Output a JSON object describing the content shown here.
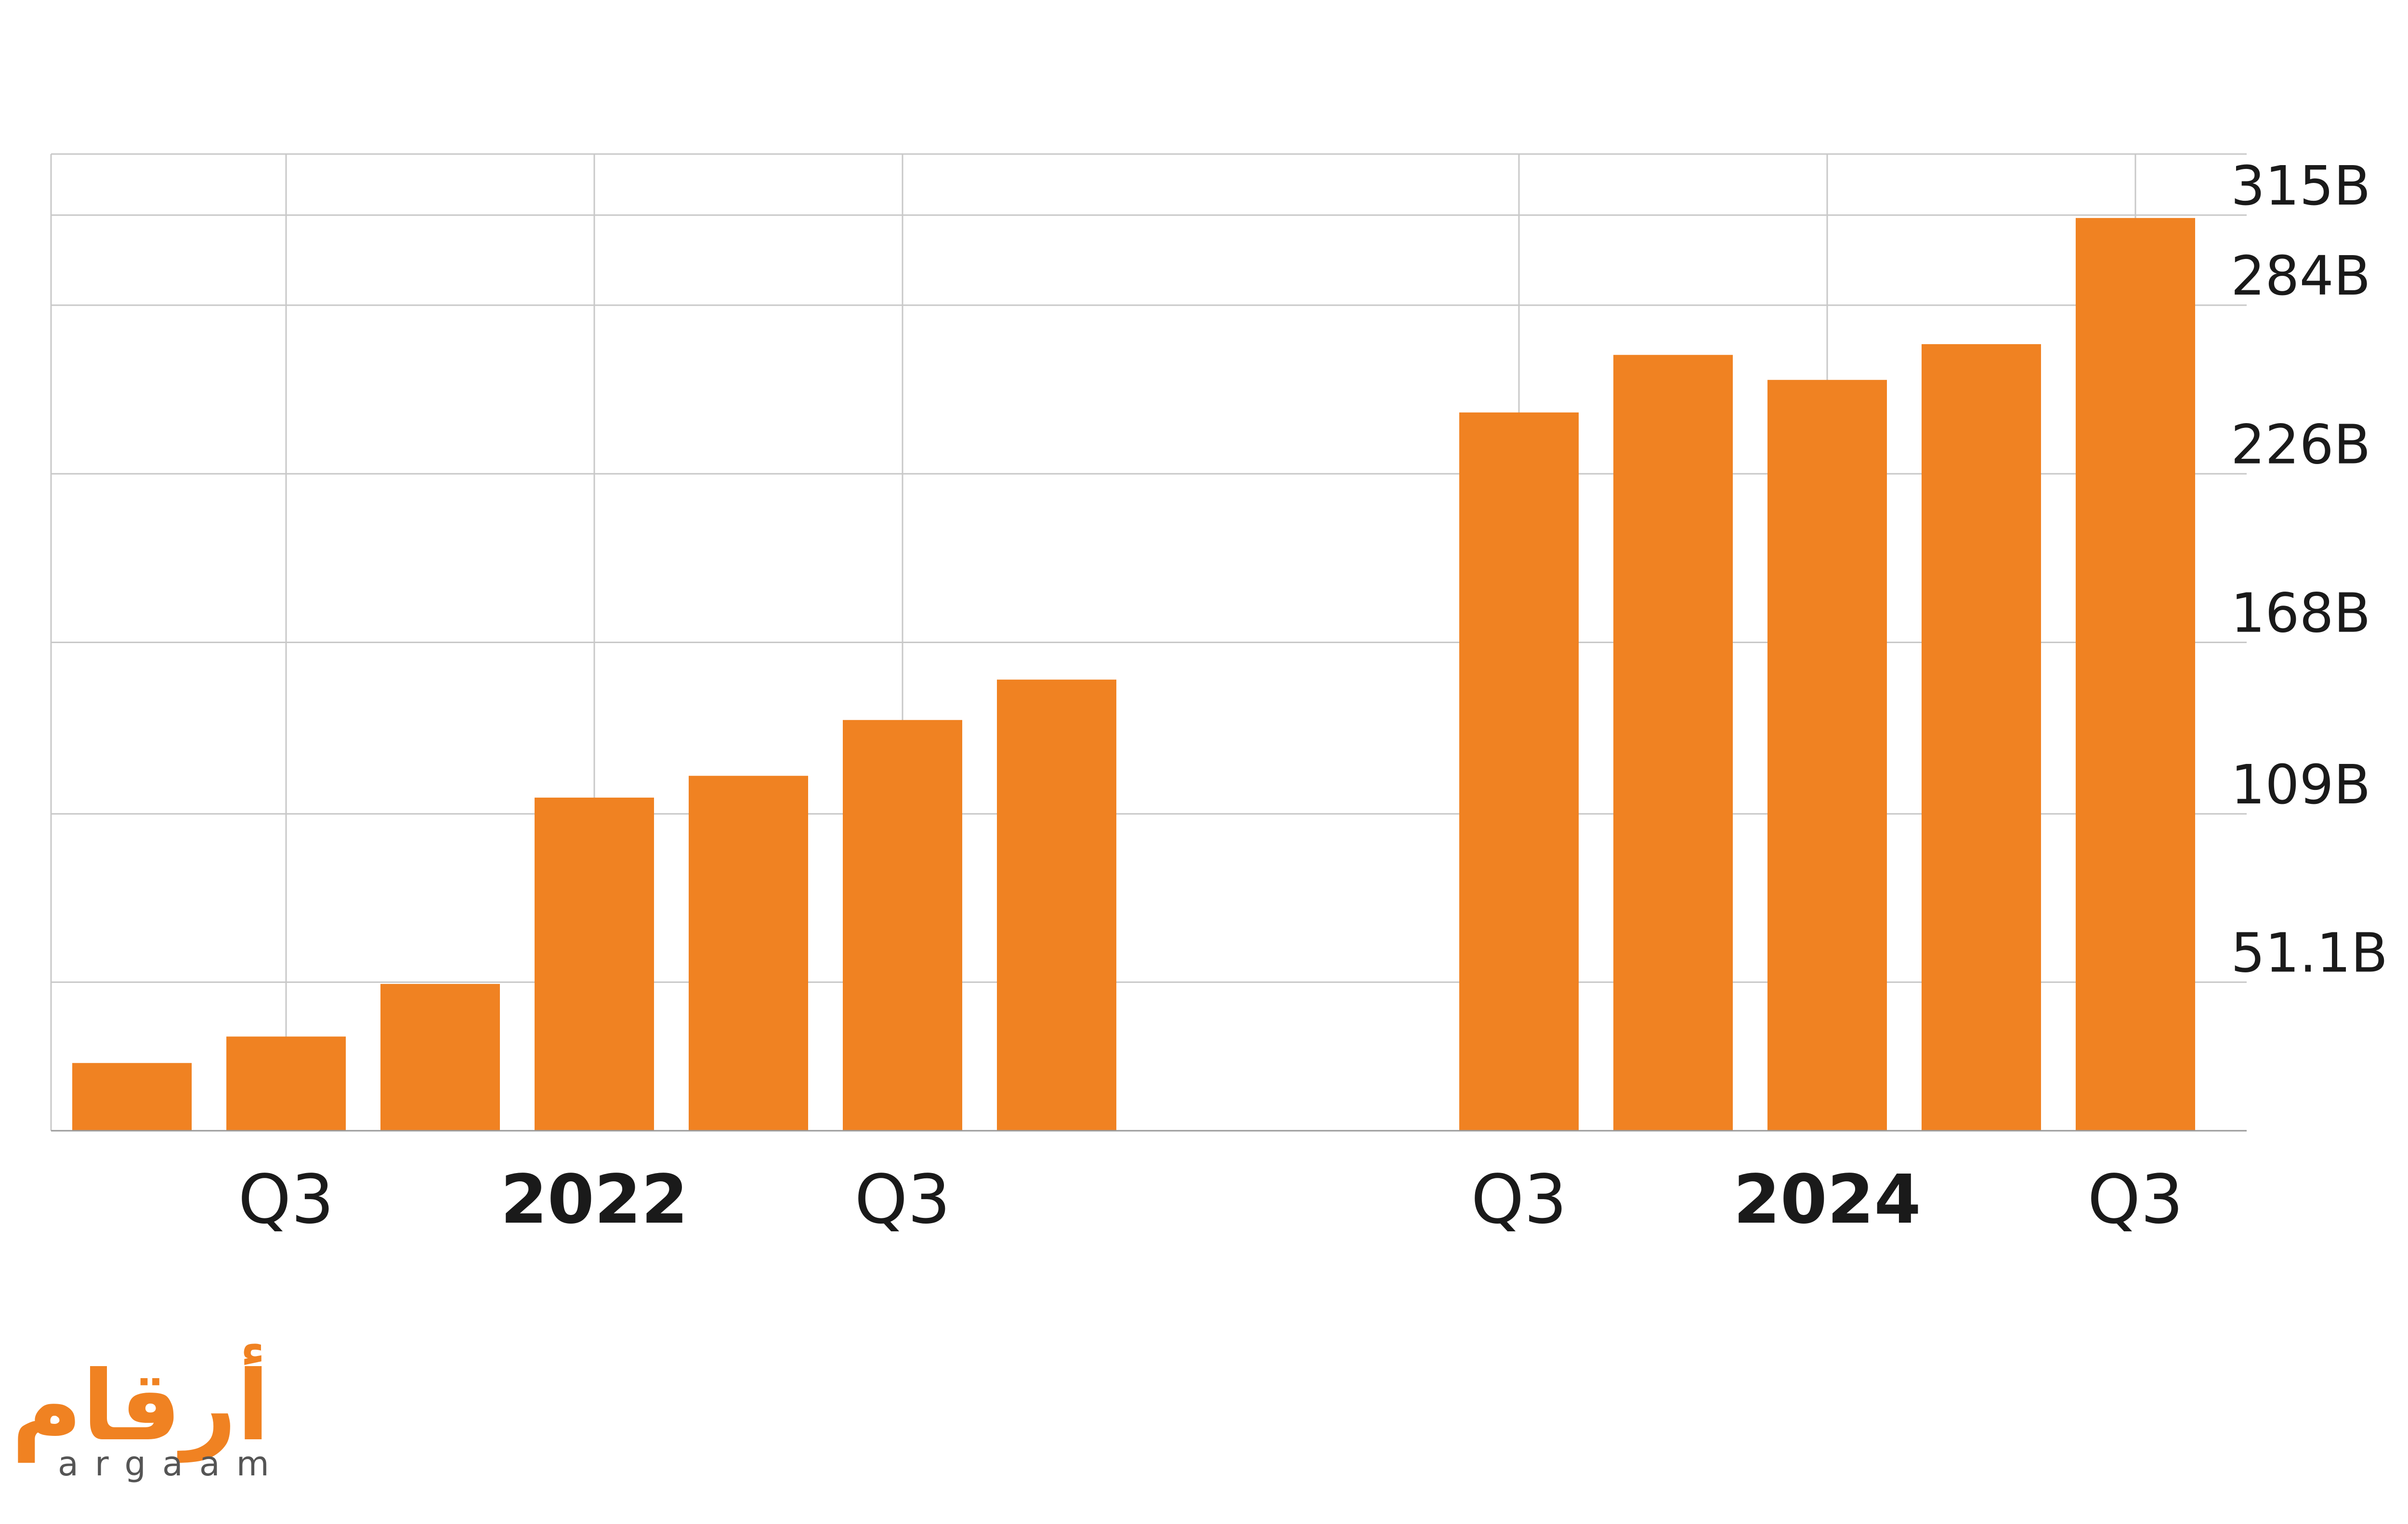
{
  "chart_data": {
    "type": "bar",
    "categories": [
      null,
      "Q3",
      null,
      "2022",
      null,
      "Q3",
      null,
      null,
      null,
      "Q3",
      null,
      "2024",
      null,
      "Q3"
    ],
    "values": [
      23.3,
      32.4,
      50.5,
      114.6,
      122.1,
      141.3,
      155.2,
      null,
      null,
      247.1,
      266.9,
      258.3,
      270.6,
      314
    ],
    "color": "#f08222",
    "ylim": [
      0,
      336
    ],
    "yticks": [
      {
        "value": 51.1,
        "label": "51.1B"
      },
      {
        "value": 109,
        "label": "109B"
      },
      {
        "value": 168,
        "label": "168B"
      },
      {
        "value": 226,
        "label": "226B"
      },
      {
        "value": 284,
        "label": "284B"
      },
      {
        "value": 315,
        "label": "315B"
      }
    ],
    "grid": true
  },
  "logo": {
    "arabic": "أرقام",
    "latin": "argaam"
  }
}
